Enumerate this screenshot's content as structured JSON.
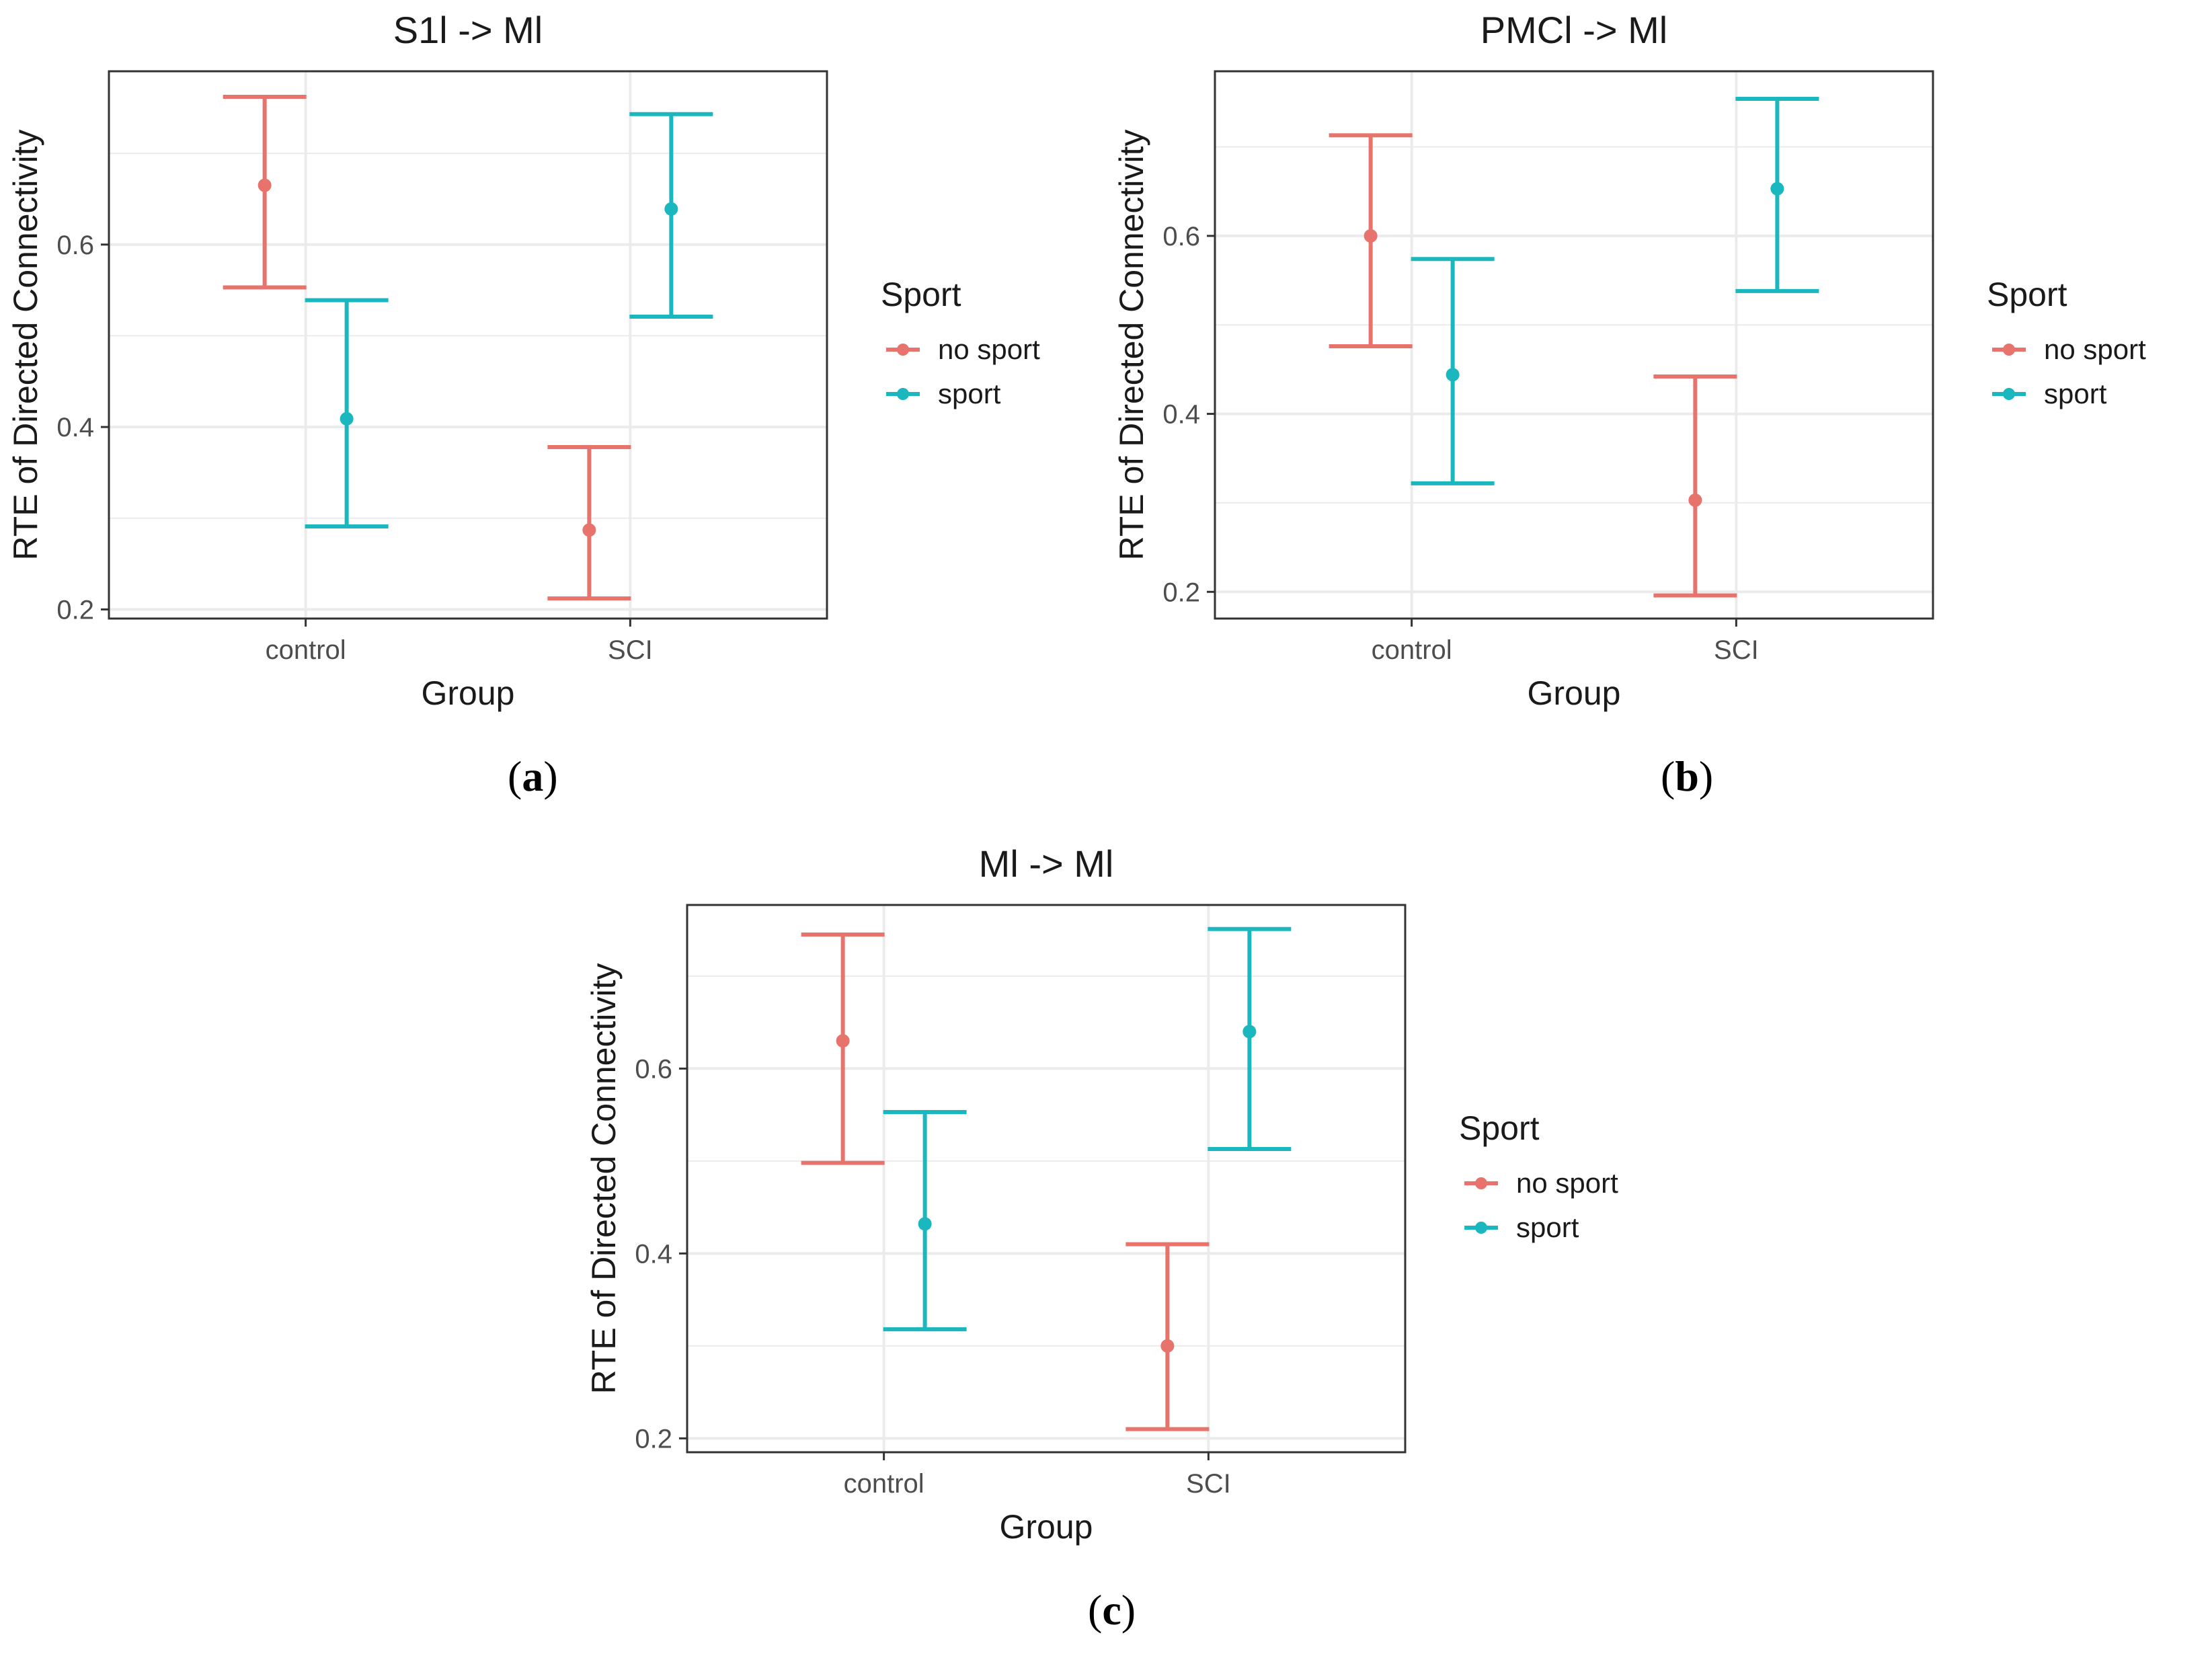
{
  "colors": {
    "no_sport": "#E8736C",
    "sport": "#1AB7BE",
    "grid": "#EBEBEB",
    "panel_border": "#333333",
    "axis_text": "#4D4D4D",
    "text": "#1A1A1A"
  },
  "chart_data": [
    {
      "type": "errorbar",
      "panel_label": "a",
      "title": "S1l -> Ml",
      "xlabel": "Group",
      "ylabel": "RTE of Directed Connectivity",
      "categories": [
        "control",
        "SCI"
      ],
      "ylim": [
        0.19,
        0.79
      ],
      "yticks": [
        "0.2",
        "0.4",
        "0.6"
      ],
      "legend": {
        "title": "Sport",
        "entries": [
          "no sport",
          "sport"
        ],
        "position": "right"
      },
      "series": [
        {
          "name": "no sport",
          "color": "#E8736C",
          "mean": [
            0.665,
            0.287
          ],
          "lower": [
            0.553,
            0.212
          ],
          "upper": [
            0.762,
            0.378
          ]
        },
        {
          "name": "sport",
          "color": "#1AB7BE",
          "mean": [
            0.409,
            0.639
          ],
          "lower": [
            0.291,
            0.521
          ],
          "upper": [
            0.539,
            0.743
          ]
        }
      ]
    },
    {
      "type": "errorbar",
      "panel_label": "b",
      "title": "PMCl -> Ml",
      "xlabel": "Group",
      "ylabel": "RTE of Directed Connectivity",
      "categories": [
        "control",
        "SCI"
      ],
      "ylim": [
        0.17,
        0.785
      ],
      "yticks": [
        "0.2",
        "0.4",
        "0.6"
      ],
      "legend": {
        "title": "Sport",
        "entries": [
          "no sport",
          "sport"
        ],
        "position": "right"
      },
      "series": [
        {
          "name": "no sport",
          "color": "#E8736C",
          "mean": [
            0.6,
            0.303
          ],
          "lower": [
            0.476,
            0.196
          ],
          "upper": [
            0.713,
            0.442
          ]
        },
        {
          "name": "sport",
          "color": "#1AB7BE",
          "mean": [
            0.444,
            0.653
          ],
          "lower": [
            0.322,
            0.538
          ],
          "upper": [
            0.574,
            0.754
          ]
        }
      ]
    },
    {
      "type": "errorbar",
      "panel_label": "c",
      "title": "Ml -> Ml",
      "xlabel": "Group",
      "ylabel": "RTE of Directed Connectivity",
      "categories": [
        "control",
        "SCI"
      ],
      "ylim": [
        0.185,
        0.777
      ],
      "yticks": [
        "0.2",
        "0.4",
        "0.6"
      ],
      "legend": {
        "title": "Sport",
        "entries": [
          "no sport",
          "sport"
        ],
        "position": "right"
      },
      "series": [
        {
          "name": "no sport",
          "color": "#E8736C",
          "mean": [
            0.63,
            0.3
          ],
          "lower": [
            0.498,
            0.21
          ],
          "upper": [
            0.745,
            0.41
          ]
        },
        {
          "name": "sport",
          "color": "#1AB7BE",
          "mean": [
            0.432,
            0.64
          ],
          "lower": [
            0.318,
            0.513
          ],
          "upper": [
            0.553,
            0.751
          ]
        }
      ]
    }
  ]
}
